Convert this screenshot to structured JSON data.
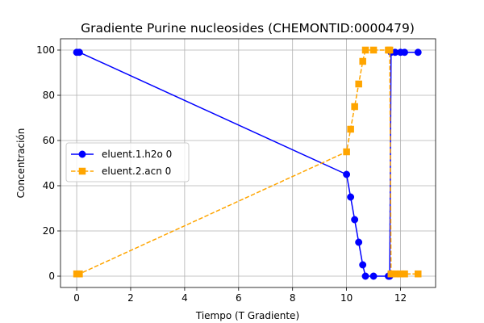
{
  "chart_data": {
    "type": "line",
    "title": "Gradiente Purine nucleosides (CHEMONTID:0000479)",
    "xlabel": "Tiempo (T Gradiente)",
    "ylabel": "Concentración",
    "xlim": [
      -0.6,
      13.3
    ],
    "ylim": [
      -5,
      105
    ],
    "xticks": [
      0,
      2,
      4,
      6,
      8,
      10,
      12
    ],
    "yticks": [
      0,
      20,
      40,
      60,
      80,
      100
    ],
    "grid": true,
    "legend_position": "center-left",
    "series": [
      {
        "name": "eluent.1.h2o 0",
        "color": "#0000ff",
        "linestyle": "solid",
        "marker": "circle",
        "x": [
          0,
          0.1,
          10,
          10.15,
          10.3,
          10.45,
          10.6,
          10.7,
          11,
          11.55,
          11.6,
          11.65,
          11.8,
          12,
          12.15,
          12.65
        ],
        "y": [
          99,
          99,
          45,
          35,
          25,
          15,
          5,
          0,
          0,
          0,
          0,
          99,
          99,
          99,
          99,
          99
        ]
      },
      {
        "name": "eluent.2.acn 0",
        "color": "#ffa500",
        "linestyle": "dashed",
        "marker": "square",
        "x": [
          0,
          0.1,
          10,
          10.15,
          10.3,
          10.45,
          10.6,
          10.7,
          11,
          11.55,
          11.6,
          11.65,
          11.8,
          12,
          12.15,
          12.65
        ],
        "y": [
          1,
          1,
          55,
          65,
          75,
          85,
          95,
          100,
          100,
          100,
          100,
          1,
          1,
          1,
          1,
          1
        ]
      }
    ]
  }
}
